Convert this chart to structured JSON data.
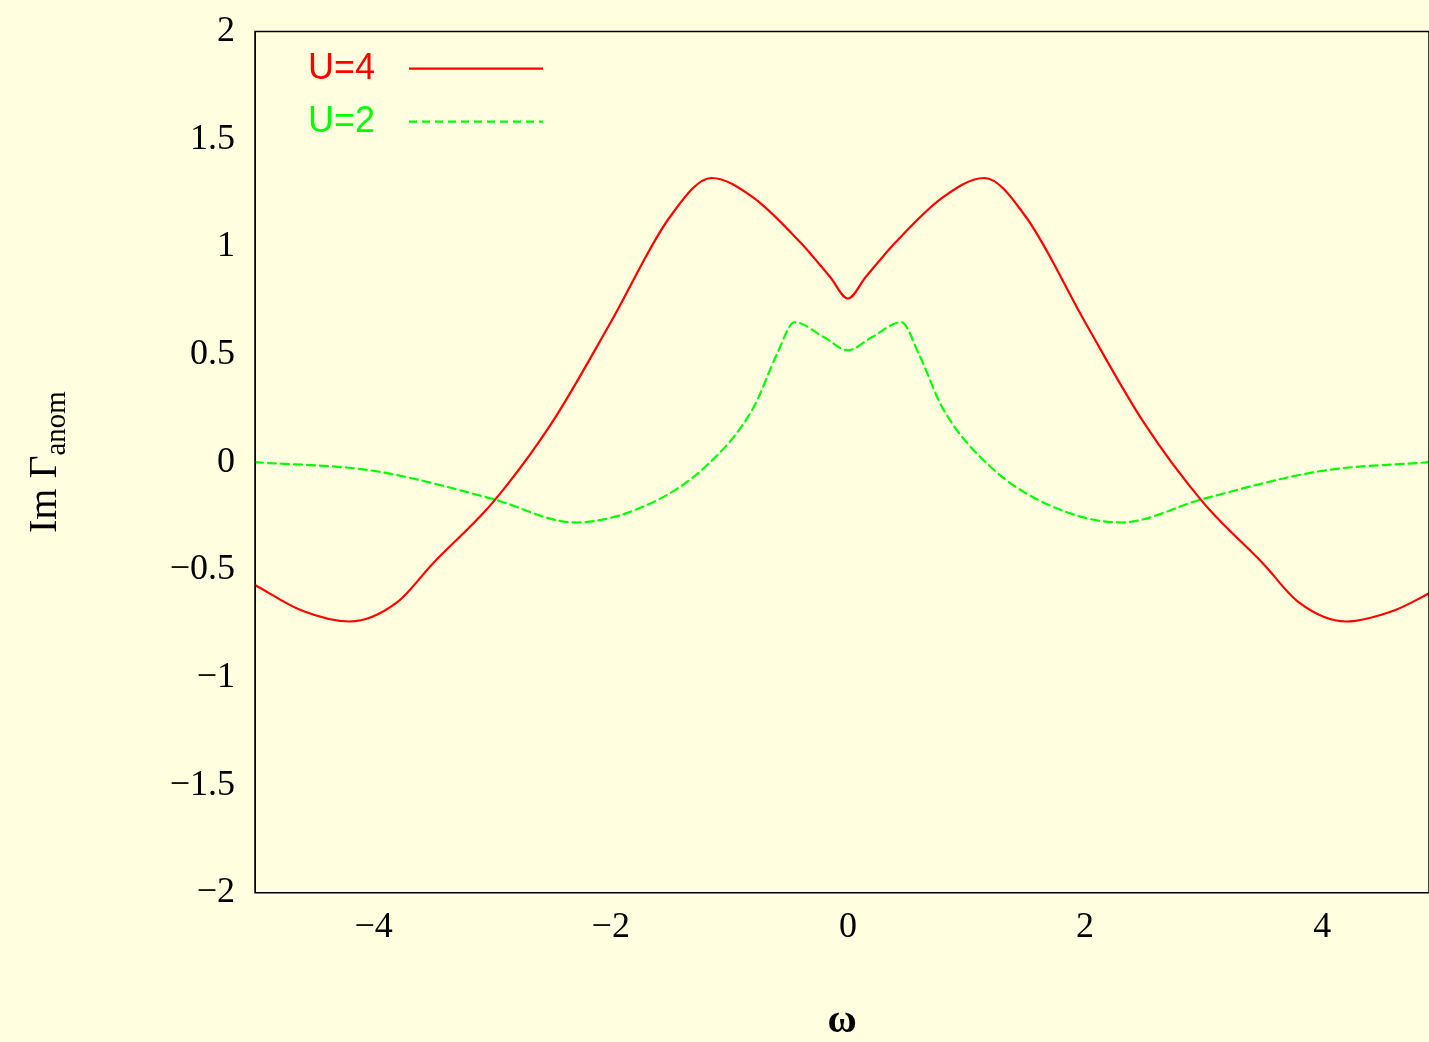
{
  "chart_data": {
    "type": "line",
    "xlabel": "ω",
    "ylabel": "Im Γ$_{anom}$",
    "xlim": [
      -5,
      4.9
    ],
    "xticks": [
      -4,
      -2,
      0,
      2,
      4
    ],
    "ylim": [
      -2,
      2
    ],
    "yticks": [
      -2,
      -1.5,
      -1,
      -0.5,
      0,
      0.5,
      1,
      1.5,
      2
    ],
    "grid": false,
    "legend": "top left",
    "marker": "none",
    "series": [
      {
        "name": "U=4",
        "color": "#ff0000",
        "line_style": "solid",
        "x": [
          -5,
          -4.6,
          -4.2,
          -3.8,
          -3.5,
          -3,
          -2.5,
          -2,
          -1.5,
          -1.15,
          -0.8,
          -0.4,
          -0.15,
          0,
          0.15,
          0.4,
          0.8,
          1.15,
          1.5,
          2,
          2.5,
          3,
          3.5,
          3.8,
          4.2,
          4.6,
          4.9
        ],
        "values": [
          -0.57,
          -0.69,
          -0.74,
          -0.65,
          -0.47,
          -0.19,
          0.18,
          0.65,
          1.14,
          1.32,
          1.23,
          1.02,
          0.86,
          0.76,
          0.86,
          1.02,
          1.23,
          1.32,
          1.14,
          0.65,
          0.18,
          -0.19,
          -0.47,
          -0.65,
          -0.74,
          -0.69,
          -0.61
        ]
      },
      {
        "name": "U=2",
        "color": "#00ff00",
        "line_style": "dashed",
        "x": [
          -5,
          -4,
          -3,
          -2.3,
          -1.7,
          -1.2,
          -0.8,
          -0.6,
          -0.45,
          -0.2,
          0,
          0.2,
          0.45,
          0.6,
          0.8,
          1.2,
          1.7,
          2.3,
          3,
          4,
          4.9
        ],
        "values": [
          0,
          -0.04,
          -0.17,
          -0.28,
          -0.2,
          -0.02,
          0.25,
          0.5,
          0.65,
          0.58,
          0.52,
          0.58,
          0.65,
          0.5,
          0.25,
          -0.02,
          -0.2,
          -0.28,
          -0.17,
          -0.04,
          0
        ]
      }
    ]
  }
}
